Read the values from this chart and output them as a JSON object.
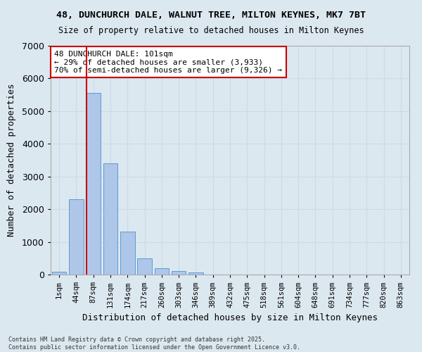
{
  "title_line1": "48, DUNCHURCH DALE, WALNUT TREE, MILTON KEYNES, MK7 7BT",
  "title_line2": "Size of property relative to detached houses in Milton Keynes",
  "xlabel": "Distribution of detached houses by size in Milton Keynes",
  "ylabel": "Number of detached properties",
  "categories": [
    "1sqm",
    "44sqm",
    "87sqm",
    "131sqm",
    "174sqm",
    "217sqm",
    "260sqm",
    "303sqm",
    "346sqm",
    "389sqm",
    "432sqm",
    "475sqm",
    "518sqm",
    "561sqm",
    "604sqm",
    "648sqm",
    "691sqm",
    "734sqm",
    "777sqm",
    "820sqm",
    "863sqm"
  ],
  "values": [
    80,
    2300,
    5550,
    3400,
    1320,
    500,
    190,
    100,
    55,
    0,
    0,
    0,
    0,
    0,
    0,
    0,
    0,
    0,
    0,
    0,
    0
  ],
  "bar_color": "#aec6e8",
  "bar_edge_color": "#5b9bd5",
  "vline_color": "#cc0000",
  "annotation_text": "48 DUNCHURCH DALE: 101sqm\n← 29% of detached houses are smaller (3,933)\n70% of semi-detached houses are larger (9,326) →",
  "annotation_box_color": "#ffffff",
  "annotation_box_edge": "#cc0000",
  "ylim": [
    0,
    7000
  ],
  "yticks": [
    0,
    1000,
    2000,
    3000,
    4000,
    5000,
    6000,
    7000
  ],
  "grid_color": "#ccd9e8",
  "background_color": "#dce8f0",
  "fig_background": "#dce8f0",
  "footer_line1": "Contains HM Land Registry data © Crown copyright and database right 2025.",
  "footer_line2": "Contains public sector information licensed under the Open Government Licence v3.0."
}
